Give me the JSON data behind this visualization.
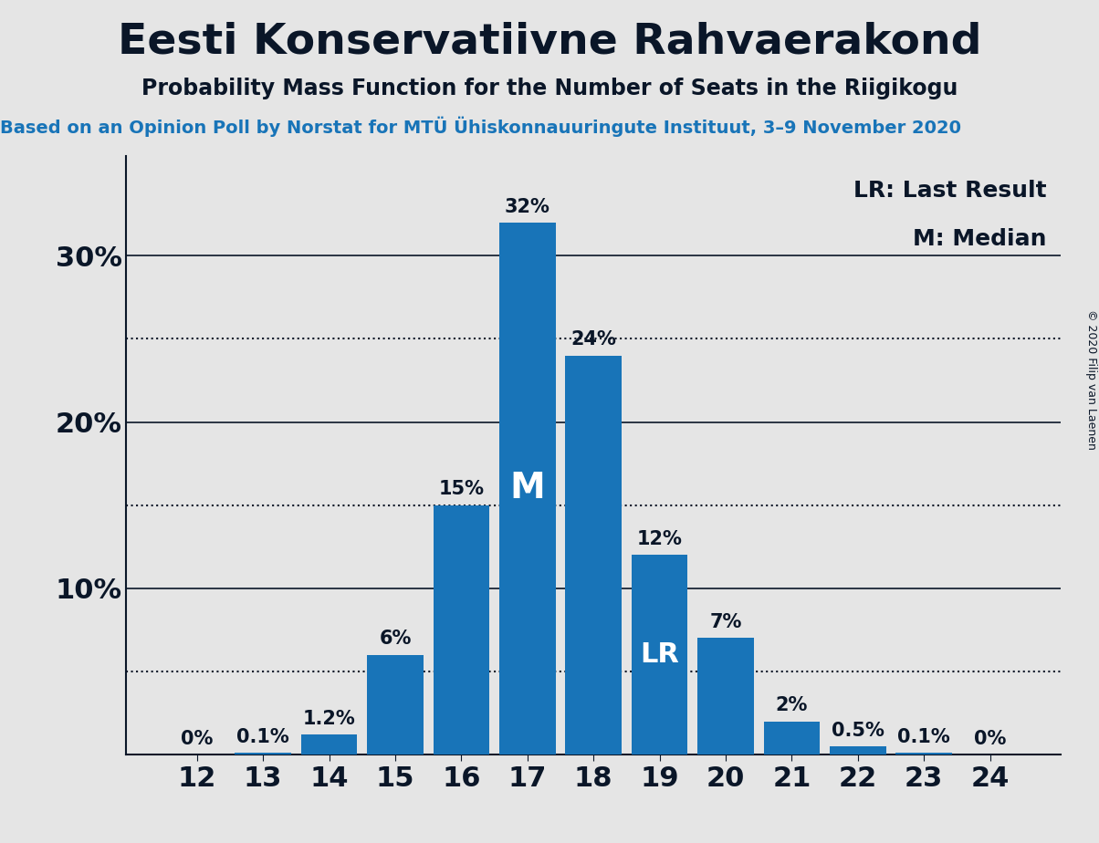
{
  "title": "Eesti Konservatiivne Rahvaerakond",
  "subtitle": "Probability Mass Function for the Number of Seats in the Riigikogu",
  "source_line": "Based on an Opinion Poll by Norstat for MTÜ Ühiskonnauuringute Instituut, 3–9 November 2020",
  "copyright": "© 2020 Filip van Laenen",
  "categories": [
    12,
    13,
    14,
    15,
    16,
    17,
    18,
    19,
    20,
    21,
    22,
    23,
    24
  ],
  "values": [
    0.0,
    0.1,
    1.2,
    6.0,
    15.0,
    32.0,
    24.0,
    12.0,
    7.0,
    2.0,
    0.5,
    0.1,
    0.0
  ],
  "labels": [
    "0%",
    "0.1%",
    "1.2%",
    "6%",
    "15%",
    "32%",
    "24%",
    "12%",
    "7%",
    "2%",
    "0.5%",
    "0.1%",
    "0%"
  ],
  "bar_color": "#1874b8",
  "background_color": "#e5e5e5",
  "text_color": "#0a1628",
  "source_color": "#1874b8",
  "median_idx": 5,
  "lr_idx": 7,
  "median_label": "M",
  "lr_label": "LR",
  "legend_lr": "LR: Last Result",
  "legend_m": "M: Median",
  "yticks": [
    10,
    20,
    30
  ],
  "dotted_lines": [
    5,
    15,
    25
  ],
  "ylim": [
    0,
    36
  ],
  "title_fontsize": 34,
  "subtitle_fontsize": 17,
  "source_fontsize": 14,
  "bar_label_fontsize": 15,
  "axis_label_fontsize": 22,
  "legend_fontsize": 18,
  "inner_label_fontsize_M": 28,
  "inner_label_fontsize_LR": 22
}
